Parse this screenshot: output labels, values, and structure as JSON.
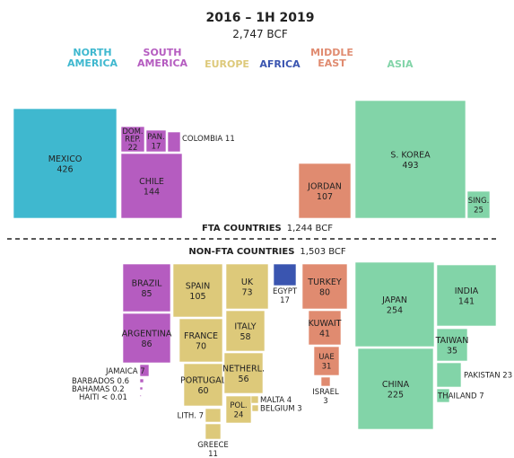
{
  "chart_data": {
    "type": "treemap",
    "title": "2016 – 1H 2019",
    "subtitle": "2,747 BCF",
    "regions": [
      {
        "key": "na",
        "label": [
          "NORTH",
          "AMERICA"
        ],
        "color": "#3fb8cf"
      },
      {
        "key": "sa",
        "label": [
          "SOUTH",
          "AMERICA"
        ],
        "color": "#b55cc0"
      },
      {
        "key": "eu",
        "label": [
          "EUROPE"
        ],
        "color": "#ddc97a"
      },
      {
        "key": "af",
        "label": [
          "AFRICA"
        ],
        "color": "#3a55b0"
      },
      {
        "key": "me",
        "label": [
          "MIDDLE",
          "EAST"
        ],
        "color": "#e08b70"
      },
      {
        "key": "as",
        "label": [
          "ASIA"
        ],
        "color": "#82d4a8"
      }
    ],
    "fta": {
      "label": "FTA COUNTRIES",
      "total": "1,244 BCF",
      "countries": [
        {
          "name": "MEXICO",
          "value": 426,
          "region": "na"
        },
        {
          "name": "DOM. REP.",
          "value": 22,
          "region": "sa"
        },
        {
          "name": "PAN.",
          "value": 17,
          "region": "sa"
        },
        {
          "name": "COLOMBIA",
          "value": 11,
          "region": "sa"
        },
        {
          "name": "CHILE",
          "value": 144,
          "region": "sa"
        },
        {
          "name": "JORDAN",
          "value": 107,
          "region": "me"
        },
        {
          "name": "S. KOREA",
          "value": 493,
          "region": "as"
        },
        {
          "name": "SING.",
          "value": 25,
          "region": "as"
        }
      ]
    },
    "non_fta": {
      "label": "NON-FTA COUNTRIES",
      "total": "1,503 BCF",
      "countries": [
        {
          "name": "BRAZIL",
          "value": 85,
          "region": "sa"
        },
        {
          "name": "ARGENTINA",
          "value": 86,
          "region": "sa"
        },
        {
          "name": "JAMAICA",
          "value": 7,
          "region": "sa"
        },
        {
          "name": "BARBADOS",
          "value": 0.6,
          "region": "sa"
        },
        {
          "name": "BAHAMAS",
          "value": 0.2,
          "region": "sa"
        },
        {
          "name": "HAITI",
          "value": "< 0.01",
          "region": "sa"
        },
        {
          "name": "SPAIN",
          "value": 105,
          "region": "eu"
        },
        {
          "name": "UK",
          "value": 73,
          "region": "eu"
        },
        {
          "name": "FRANCE",
          "value": 70,
          "region": "eu"
        },
        {
          "name": "ITALY",
          "value": 58,
          "region": "eu"
        },
        {
          "name": "PORTUGAL",
          "value": 60,
          "region": "eu"
        },
        {
          "name": "NETHERL.",
          "value": 56,
          "region": "eu"
        },
        {
          "name": "POL.",
          "value": 24,
          "region": "eu"
        },
        {
          "name": "MALTA",
          "value": 4,
          "region": "eu"
        },
        {
          "name": "BELGIUM",
          "value": 3,
          "region": "eu"
        },
        {
          "name": "LITH.",
          "value": 7,
          "region": "eu"
        },
        {
          "name": "GREECE",
          "value": 11,
          "region": "eu"
        },
        {
          "name": "EGYPT",
          "value": 17,
          "region": "af"
        },
        {
          "name": "TURKEY",
          "value": 80,
          "region": "me"
        },
        {
          "name": "KUWAIT",
          "value": 41,
          "region": "me"
        },
        {
          "name": "UAE",
          "value": 31,
          "region": "me"
        },
        {
          "name": "ISRAEL",
          "value": 3,
          "region": "me"
        },
        {
          "name": "JAPAN",
          "value": 254,
          "region": "as"
        },
        {
          "name": "INDIA",
          "value": 141,
          "region": "as"
        },
        {
          "name": "TAIWAN",
          "value": 35,
          "region": "as"
        },
        {
          "name": "PAKISTAN",
          "value": 23,
          "region": "as"
        },
        {
          "name": "THAILAND",
          "value": 7,
          "region": "as"
        },
        {
          "name": "CHINA",
          "value": 225,
          "region": "as"
        }
      ]
    }
  }
}
